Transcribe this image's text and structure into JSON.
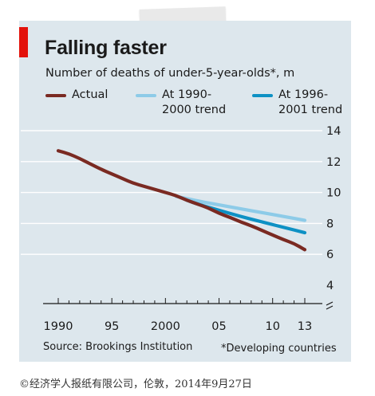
{
  "header": {
    "title": "Falling faster",
    "subtitle": "Number of deaths of under-5-year-olds*, m"
  },
  "footer": {
    "source": "Source: Brookings Institution",
    "note": "*Developing countries"
  },
  "copyright": "©经济学人报纸有限公司，伦敦，2014年9月27日",
  "colors": {
    "panel": "#dde7ed",
    "accent_red": "#e3120b",
    "actual": "#7a2a22",
    "trend_1990": "#8dcbe8",
    "trend_1996": "#0e91c4"
  },
  "chart_data": {
    "type": "line",
    "title": "Falling faster",
    "subtitle": "Number of deaths of under-5-year-olds*, m",
    "xlim": [
      1990,
      2013
    ],
    "ylim": [
      4,
      14
    ],
    "y_axis_break": true,
    "y_ticks": [
      4,
      6,
      8,
      10,
      12,
      14
    ],
    "y_tick_labels": [
      "4",
      "6",
      "8",
      "10",
      "12",
      "14"
    ],
    "x_ticks": [
      1990,
      1995,
      2000,
      2005,
      2010,
      2013
    ],
    "x_tick_labels": [
      "1990",
      "95",
      "2000",
      "05",
      "10",
      "13"
    ],
    "y_axis_position": "right",
    "grid": "horizontal",
    "legend_position": "top",
    "series": [
      {
        "name": "Actual",
        "color": "#7a2a22",
        "x": [
          1990,
          1991,
          1992,
          1993,
          1994,
          1995,
          1996,
          1997,
          1998,
          1999,
          2000,
          2001,
          2002,
          2003,
          2004,
          2005,
          2006,
          2007,
          2008,
          2009,
          2010,
          2011,
          2012,
          2013
        ],
        "y": [
          12.7,
          12.5,
          12.2,
          11.85,
          11.5,
          11.2,
          10.9,
          10.6,
          10.4,
          10.2,
          10.0,
          9.8,
          9.5,
          9.25,
          9.0,
          8.65,
          8.4,
          8.1,
          7.85,
          7.55,
          7.25,
          6.95,
          6.7,
          6.3
        ]
      },
      {
        "name": "At 1990-2000 trend",
        "color": "#8dcbe8",
        "x": [
          2001,
          2003,
          2005,
          2007,
          2009,
          2011,
          2013
        ],
        "y": [
          9.75,
          9.45,
          9.2,
          8.95,
          8.7,
          8.45,
          8.2
        ]
      },
      {
        "name": "At 1996-2001 trend",
        "color": "#0e91c4",
        "x": [
          2002,
          2003,
          2005,
          2007,
          2009,
          2011,
          2013
        ],
        "y": [
          9.5,
          9.25,
          8.85,
          8.45,
          8.1,
          7.75,
          7.4
        ]
      }
    ]
  },
  "legend": [
    {
      "label": "Actual"
    },
    {
      "label": "At 1990-\n2000 trend"
    },
    {
      "label": "At 1996-\n2001 trend"
    }
  ]
}
